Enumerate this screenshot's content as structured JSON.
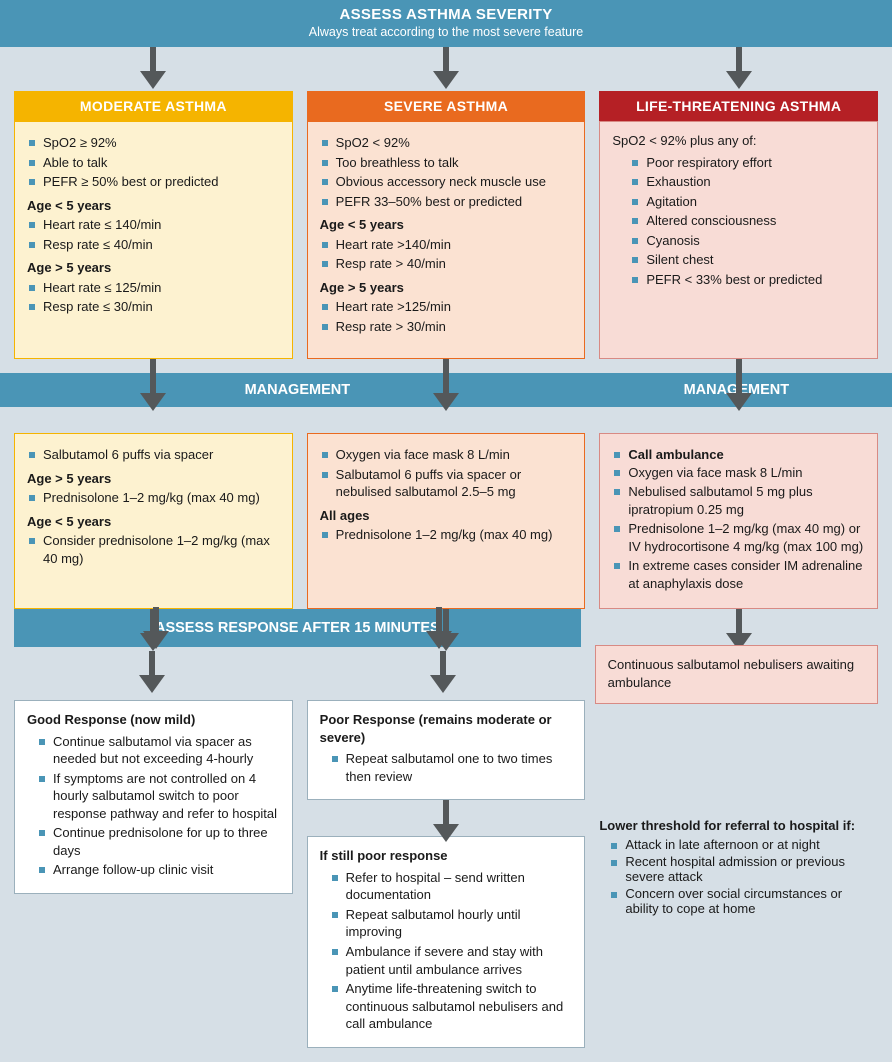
{
  "colors": {
    "page_bg": "#d6dfe6",
    "banner_bg": "#4a95b6",
    "banner_text": "#ffffff",
    "bullet": "#4a95b6",
    "arrow": "#54585a",
    "moderate_header_bg": "#f5b400",
    "moderate_body_bg": "#fdf2d0",
    "moderate_border": "#f5b400",
    "severe_header_bg": "#e96a1f",
    "severe_body_bg": "#fbe2d2",
    "severe_border": "#e96a1f",
    "life_header_bg": "#b52025",
    "life_body_bg": "#f8dcd6",
    "life_border": "#d88a84",
    "white_box_bg": "#ffffff",
    "white_box_border": "#9bb0bc"
  },
  "top_banner": {
    "title": "ASSESS ASTHMA SEVERITY",
    "subtitle": "Always treat according to the most severe feature"
  },
  "severity": {
    "moderate": {
      "title": "MODERATE ASTHMA",
      "criteria_top": [
        "SpO2 ≥ 92%",
        "Able to talk",
        "PEFR ≥ 50% best or predicted"
      ],
      "age_lt5_title": "Age < 5 years",
      "age_lt5": [
        "Heart rate ≤ 140/min",
        "Resp rate ≤ 40/min"
      ],
      "age_gt5_title": "Age > 5 years",
      "age_gt5": [
        "Heart rate ≤ 125/min",
        "Resp rate ≤ 30/min"
      ]
    },
    "severe": {
      "title": "SEVERE ASTHMA",
      "criteria_top": [
        "SpO2 < 92%",
        "Too breathless to talk",
        "Obvious accessory neck muscle use",
        "PEFR 33–50% best or predicted"
      ],
      "age_lt5_title": "Age < 5 years",
      "age_lt5": [
        "Heart rate >140/min",
        "Resp rate > 40/min"
      ],
      "age_gt5_title": "Age > 5 years",
      "age_gt5": [
        "Heart rate >125/min",
        "Resp rate > 30/min"
      ]
    },
    "life": {
      "title": "LIFE-THREATENING ASTHMA",
      "intro": "SpO2 < 92% plus any of:",
      "items": [
        "Poor respiratory effort",
        "Exhaustion",
        "Agitation",
        "Altered consciousness",
        "Cyanosis",
        "Silent chest",
        "PEFR < 33% best or predicted"
      ]
    }
  },
  "management_bar": {
    "left": "MANAGEMENT",
    "right": "MANAGEMENT"
  },
  "management": {
    "moderate": {
      "top": [
        "Salbutamol 6 puffs via spacer"
      ],
      "age_gt5_title": "Age > 5 years",
      "age_gt5": [
        "Prednisolone 1–2 mg/kg (max 40 mg)"
      ],
      "age_lt5_title": "Age < 5 years",
      "age_lt5": [
        "Consider prednisolone 1–2 mg/kg (max 40 mg)"
      ]
    },
    "severe": {
      "top": [
        "Oxygen via face mask 8 L/min",
        "Salbutamol 6 puffs via spacer or nebulised salbutamol 2.5–5 mg"
      ],
      "all_ages_title": "All ages",
      "all_ages": [
        "Prednisolone 1–2 mg/kg (max 40 mg)"
      ]
    },
    "life": {
      "lead_bold": "Call ambulance",
      "items": [
        "Oxygen via face mask 8 L/min",
        "Nebulised salbutamol 5 mg plus ipratropium 0.25 mg",
        "Prednisolone 1–2 mg/kg (max 40 mg) or IV hydrocortisone 4 mg/kg (max 100 mg)",
        "In extreme cases consider IM adrenaline at anaphylaxis dose"
      ]
    }
  },
  "assess_response_bar": "ASSESS RESPONSE AFTER 15 MINUTES",
  "life_followup": "Continuous salbutamol nebulisers awaiting ambulance",
  "response": {
    "good": {
      "title": "Good Response (now mild)",
      "items": [
        "Continue salbutamol via spacer as needed but not exceeding 4-hourly",
        "If symptoms are not controlled on 4 hourly salbutamol switch to poor response pathway and refer to hospital",
        "Continue prednisolone for up to three days",
        "Arrange follow-up clinic visit"
      ]
    },
    "poor": {
      "title": "Poor Response (remains moderate or severe)",
      "items": [
        "Repeat salbutamol one to two times then review"
      ]
    },
    "still_poor": {
      "title": "If still poor response",
      "items": [
        "Refer to hospital – send written documentation",
        "Repeat salbutamol hourly until improving",
        "Ambulance if severe and stay with patient until ambulance arrives",
        "Anytime life-threatening switch to continuous salbutamol nebulisers and call ambulance"
      ]
    },
    "referral": {
      "title": "Lower threshold for referral to hospital if:",
      "items": [
        "Attack in late afternoon or at night",
        "Recent hospital admission or previous severe attack",
        "Concern over social circumstances or ability to cope at home"
      ]
    }
  }
}
